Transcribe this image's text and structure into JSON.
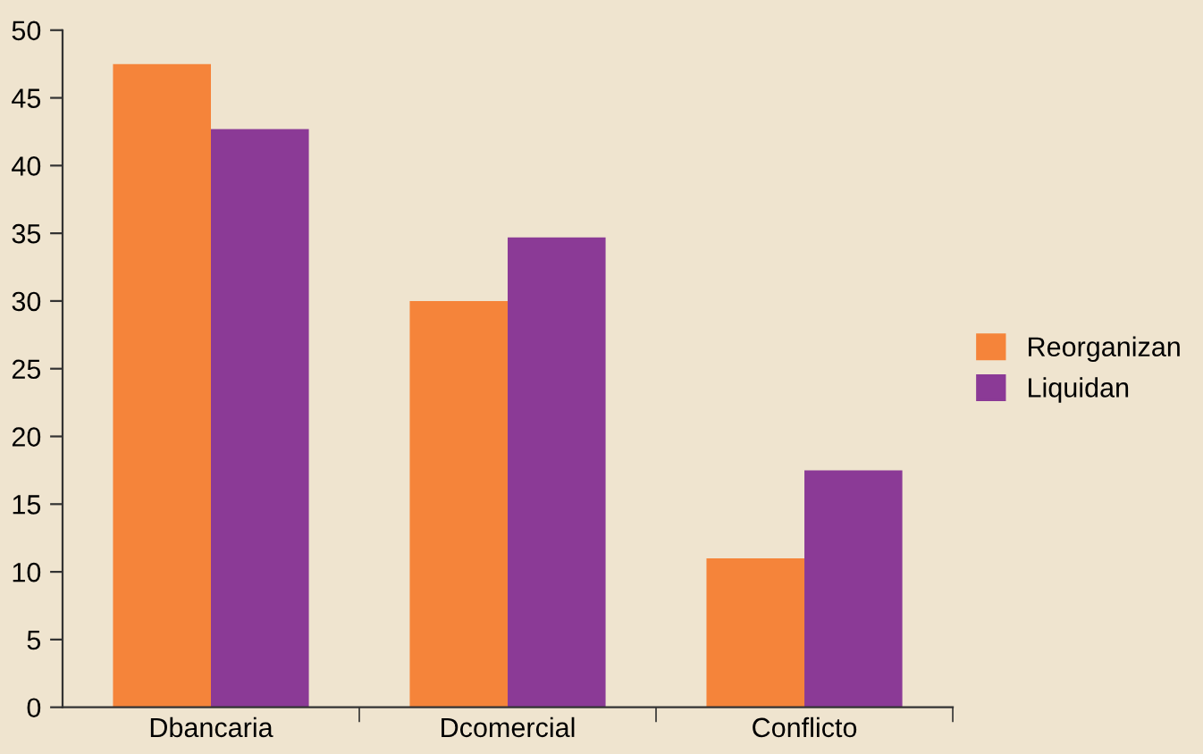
{
  "chart_data": {
    "type": "bar",
    "categories": [
      "Dbancaria",
      "Dcomercial",
      "Conflicto"
    ],
    "series": [
      {
        "name": "Reorganizan",
        "color": "#f5843a",
        "values": [
          47.5,
          30,
          11
        ]
      },
      {
        "name": "Liquidan",
        "color": "#8b3a96",
        "values": [
          42.7,
          34.7,
          17.5
        ]
      }
    ],
    "ylim": [
      0,
      50
    ],
    "yticks": [
      0,
      5,
      10,
      15,
      20,
      25,
      30,
      35,
      40,
      45,
      50
    ],
    "grid": false,
    "legend": "right"
  }
}
